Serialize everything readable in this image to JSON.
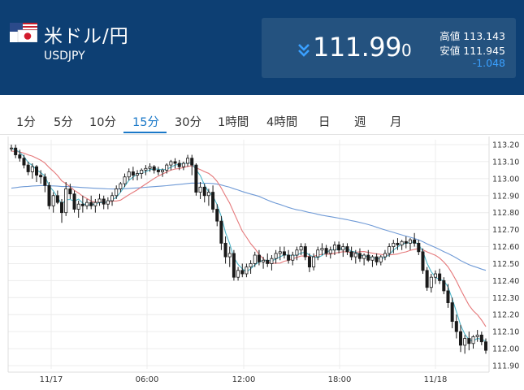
{
  "header": {
    "pair_name": "米ドル/円",
    "pair_code": "USDJPY",
    "flag_icon": "us-japan-flag",
    "price_main": "111.99",
    "price_last_digit": "0",
    "direction": "down",
    "high_label": "高値",
    "high_value": "113.143",
    "low_label": "安値",
    "low_value": "111.945",
    "change": "-1.048",
    "colors": {
      "header_bg": "#0d3f73",
      "price_box_bg": "#24527f",
      "change": "#3aa0ff",
      "down_arrow": "#3aa0ff"
    }
  },
  "tabs": [
    {
      "label": "1分"
    },
    {
      "label": "5分"
    },
    {
      "label": "10分"
    },
    {
      "label": "15分",
      "active": true
    },
    {
      "label": "30分"
    },
    {
      "label": "1時間"
    },
    {
      "label": "4時間"
    },
    {
      "label": "日"
    },
    {
      "label": "週"
    },
    {
      "label": "月"
    }
  ],
  "chart_data": {
    "type": "candlestick",
    "interval": "15分",
    "ylim": [
      111.9,
      113.2
    ],
    "y_ticks": [
      "113.20",
      "113.10",
      "113.00",
      "112.90",
      "112.80",
      "112.70",
      "112.60",
      "112.50",
      "112.40",
      "112.30",
      "112.20",
      "112.10",
      "112.00",
      "111.90"
    ],
    "x_labels": [
      "11/17",
      "06:00",
      "12:00",
      "18:00",
      "11/18"
    ],
    "grid": true,
    "candles": [
      [
        113.18,
        113.2,
        113.16,
        113.18
      ],
      [
        113.18,
        113.2,
        113.12,
        113.14
      ],
      [
        113.14,
        113.17,
        113.1,
        113.12
      ],
      [
        113.12,
        113.14,
        113.06,
        113.08
      ],
      [
        113.08,
        113.1,
        113.02,
        113.04
      ],
      [
        113.04,
        113.09,
        113.0,
        113.07
      ],
      [
        113.07,
        113.08,
        112.98,
        113.02
      ],
      [
        113.02,
        113.05,
        112.97,
        113.01
      ],
      [
        113.01,
        113.03,
        112.92,
        112.96
      ],
      [
        112.96,
        112.98,
        112.82,
        112.84
      ],
      [
        112.84,
        112.92,
        112.8,
        112.9
      ],
      [
        112.9,
        112.93,
        112.85,
        112.86
      ],
      [
        112.86,
        112.88,
        112.74,
        112.8
      ],
      [
        112.8,
        112.98,
        112.78,
        112.94
      ],
      [
        112.94,
        112.97,
        112.88,
        112.91
      ],
      [
        112.91,
        112.93,
        112.8,
        112.82
      ],
      [
        112.82,
        112.87,
        112.77,
        112.85
      ],
      [
        112.85,
        112.9,
        112.8,
        112.84
      ],
      [
        112.84,
        112.88,
        112.82,
        112.86
      ],
      [
        112.86,
        112.9,
        112.82,
        112.84
      ],
      [
        112.84,
        112.88,
        112.8,
        112.86
      ],
      [
        112.86,
        112.91,
        112.84,
        112.88
      ],
      [
        112.88,
        112.9,
        112.82,
        112.85
      ],
      [
        112.85,
        112.89,
        112.82,
        112.87
      ],
      [
        112.87,
        112.92,
        112.84,
        112.9
      ],
      [
        112.9,
        112.96,
        112.88,
        112.94
      ],
      [
        112.94,
        112.98,
        112.92,
        112.97
      ],
      [
        112.97,
        113.03,
        112.95,
        113.01
      ],
      [
        113.01,
        113.06,
        112.99,
        113.04
      ],
      [
        113.04,
        113.07,
        112.99,
        113.02
      ],
      [
        113.02,
        113.05,
        112.99,
        113.03
      ],
      [
        113.03,
        113.06,
        113.0,
        113.05
      ],
      [
        113.05,
        113.08,
        113.02,
        113.06
      ],
      [
        113.06,
        113.09,
        113.04,
        113.07
      ],
      [
        113.07,
        113.08,
        113.03,
        113.05
      ],
      [
        113.05,
        113.07,
        113.02,
        113.04
      ],
      [
        113.04,
        113.06,
        113.01,
        113.05
      ],
      [
        113.05,
        113.09,
        113.03,
        113.08
      ],
      [
        113.08,
        113.11,
        113.05,
        113.1
      ],
      [
        113.1,
        113.12,
        113.06,
        113.09
      ],
      [
        113.09,
        113.11,
        113.05,
        113.07
      ],
      [
        113.07,
        113.1,
        113.05,
        113.09
      ],
      [
        113.09,
        113.14,
        113.07,
        113.12
      ],
      [
        113.12,
        113.14,
        113.02,
        113.08
      ],
      [
        113.08,
        113.09,
        112.9,
        112.92
      ],
      [
        112.92,
        112.98,
        112.88,
        112.95
      ],
      [
        112.95,
        112.97,
        112.86,
        112.9
      ],
      [
        112.9,
        112.94,
        112.84,
        112.92
      ],
      [
        112.92,
        112.96,
        112.8,
        112.82
      ],
      [
        112.82,
        112.85,
        112.72,
        112.75
      ],
      [
        112.75,
        112.78,
        112.58,
        112.62
      ],
      [
        112.62,
        112.66,
        112.5,
        112.54
      ],
      [
        112.54,
        112.6,
        112.48,
        112.56
      ],
      [
        112.56,
        112.58,
        112.4,
        112.42
      ],
      [
        112.42,
        112.48,
        112.4,
        112.46
      ],
      [
        112.46,
        112.5,
        112.42,
        112.44
      ],
      [
        112.44,
        112.5,
        112.42,
        112.48
      ],
      [
        112.48,
        112.52,
        112.44,
        112.5
      ],
      [
        112.5,
        112.57,
        112.48,
        112.55
      ],
      [
        112.55,
        112.58,
        112.49,
        112.51
      ],
      [
        112.51,
        112.54,
        112.47,
        112.52
      ],
      [
        112.52,
        112.56,
        112.48,
        112.5
      ],
      [
        112.5,
        112.55,
        112.46,
        112.53
      ],
      [
        112.53,
        112.58,
        112.5,
        112.56
      ],
      [
        112.56,
        112.6,
        112.52,
        112.57
      ],
      [
        112.57,
        112.6,
        112.53,
        112.55
      ],
      [
        112.55,
        112.58,
        112.5,
        112.52
      ],
      [
        112.52,
        112.57,
        112.49,
        112.55
      ],
      [
        112.55,
        112.6,
        112.52,
        112.58
      ],
      [
        112.58,
        112.62,
        112.55,
        112.6
      ],
      [
        112.6,
        112.62,
        112.52,
        112.54
      ],
      [
        112.54,
        112.56,
        112.45,
        112.48
      ],
      [
        112.48,
        112.56,
        112.46,
        112.54
      ],
      [
        112.54,
        112.6,
        112.52,
        112.58
      ],
      [
        112.58,
        112.62,
        112.55,
        112.59
      ],
      [
        112.59,
        112.61,
        112.54,
        112.56
      ],
      [
        112.56,
        112.6,
        112.53,
        112.58
      ],
      [
        112.58,
        112.63,
        112.55,
        112.61
      ],
      [
        112.61,
        112.63,
        112.56,
        112.58
      ],
      [
        112.58,
        112.62,
        112.54,
        112.6
      ],
      [
        112.6,
        112.62,
        112.55,
        112.57
      ],
      [
        112.57,
        112.6,
        112.52,
        112.54
      ],
      [
        112.54,
        112.58,
        112.5,
        112.56
      ],
      [
        112.56,
        112.59,
        112.51,
        112.53
      ],
      [
        112.53,
        112.56,
        112.49,
        112.55
      ],
      [
        112.55,
        112.58,
        112.51,
        112.52
      ],
      [
        112.52,
        112.55,
        112.48,
        112.54
      ],
      [
        112.54,
        112.56,
        112.49,
        112.51
      ],
      [
        112.51,
        112.55,
        112.49,
        112.54
      ],
      [
        112.54,
        112.58,
        112.52,
        112.56
      ],
      [
        112.56,
        112.62,
        112.54,
        112.6
      ],
      [
        112.6,
        112.64,
        112.56,
        112.62
      ],
      [
        112.62,
        112.65,
        112.58,
        112.61
      ],
      [
        112.61,
        112.64,
        112.58,
        112.63
      ],
      [
        112.63,
        112.66,
        112.59,
        112.62
      ],
      [
        112.62,
        112.65,
        112.58,
        112.64
      ],
      [
        112.64,
        112.68,
        112.6,
        112.62
      ],
      [
        112.62,
        112.64,
        112.55,
        112.57
      ],
      [
        112.57,
        112.59,
        112.44,
        112.46
      ],
      [
        112.46,
        112.48,
        112.34,
        112.36
      ],
      [
        112.36,
        112.44,
        112.33,
        112.42
      ],
      [
        112.42,
        112.46,
        112.38,
        112.44
      ],
      [
        112.44,
        112.47,
        112.38,
        112.4
      ],
      [
        112.4,
        112.42,
        112.32,
        112.34
      ],
      [
        112.34,
        112.38,
        112.24,
        112.27
      ],
      [
        112.27,
        112.3,
        112.12,
        112.16
      ],
      [
        112.16,
        112.2,
        112.06,
        112.1
      ],
      [
        112.1,
        112.14,
        111.98,
        112.02
      ],
      [
        112.02,
        112.08,
        111.97,
        112.06
      ],
      [
        112.06,
        112.1,
        111.99,
        112.03
      ],
      [
        112.03,
        112.08,
        112.0,
        112.07
      ],
      [
        112.07,
        112.11,
        112.04,
        112.08
      ],
      [
        112.08,
        112.1,
        112.02,
        112.04
      ],
      [
        112.04,
        112.06,
        111.97,
        111.99
      ]
    ],
    "ma_short_color": "#4fb6c9",
    "ma_mid_color": "#e5787a",
    "ma_long_color": "#6f9ad6",
    "candle_up_color": "#ffffff",
    "candle_down_color": "#1a1a1a"
  }
}
